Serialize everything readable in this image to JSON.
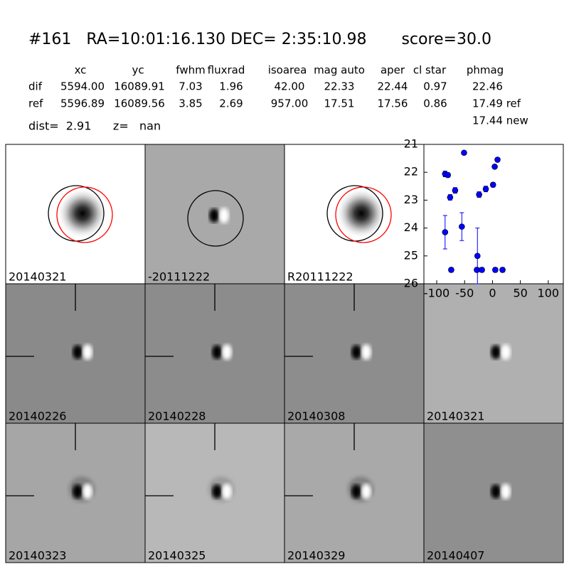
{
  "header": {
    "title": "#161   RA=10:01:16.130 DEC= 2:35:10.98       score=30.0",
    "columns": [
      "xc",
      "yc",
      "fwhm",
      "fluxrad",
      "isoarea",
      "mag auto",
      "aper",
      "cl star",
      "phmag"
    ],
    "rows": [
      {
        "label": "dif",
        "values": [
          "5594.00",
          "16089.91",
          "7.03",
          "1.96",
          "42.00",
          "22.33",
          "22.44",
          "0.97",
          "22.46"
        ]
      },
      {
        "label": "ref",
        "values": [
          "5596.89",
          "16089.56",
          "3.85",
          "2.69",
          "957.00",
          "17.51",
          "17.56",
          "0.86",
          "17.49 ref"
        ]
      }
    ],
    "extra": "17.44 new",
    "dist": "dist=  2.91      z=   nan"
  },
  "panels": [
    {
      "label": "20140321",
      "color": "#000000"
    },
    {
      "label": "-20111222",
      "color": "#000000"
    },
    {
      "label": "R20111222",
      "color": "#000000"
    },
    {
      "label": "20140226",
      "color": "#000000"
    },
    {
      "label": "20140228",
      "color": "#000000"
    },
    {
      "label": "20140308",
      "color": "#000000"
    },
    {
      "label": "20140321",
      "color": "#ff0000"
    },
    {
      "label": "20140323",
      "color": "#000000"
    },
    {
      "label": "20140325",
      "color": "#000000"
    },
    {
      "label": "20140329",
      "color": "#000000"
    },
    {
      "label": "20140407",
      "color": "#000000"
    }
  ],
  "chart_data": {
    "type": "scatter",
    "x": [
      -85,
      -80,
      -76,
      -67,
      -51,
      -55,
      -85,
      -74,
      -27,
      -28,
      -19,
      -24,
      -12,
      1,
      4,
      9,
      5,
      18
    ],
    "values": [
      22.06,
      22.1,
      22.9,
      22.65,
      21.3,
      23.95,
      24.15,
      25.5,
      25.0,
      25.5,
      25.5,
      22.8,
      22.6,
      22.45,
      21.8,
      21.55,
      25.5,
      25.5
    ],
    "errors": [
      0.1,
      0.08,
      0.1,
      0.1,
      0.05,
      0.5,
      0.6,
      0.08,
      1.0,
      0.08,
      0.08,
      0.1,
      0.1,
      0.08,
      0.06,
      0.05,
      0.08,
      0.08
    ],
    "color": "#0000ff",
    "xlim": [
      -123,
      127
    ],
    "ylim": [
      26,
      21
    ],
    "xticks": [
      -100,
      -50,
      0,
      50,
      100
    ],
    "yticks": [
      21,
      22,
      23,
      24,
      25,
      26
    ]
  }
}
